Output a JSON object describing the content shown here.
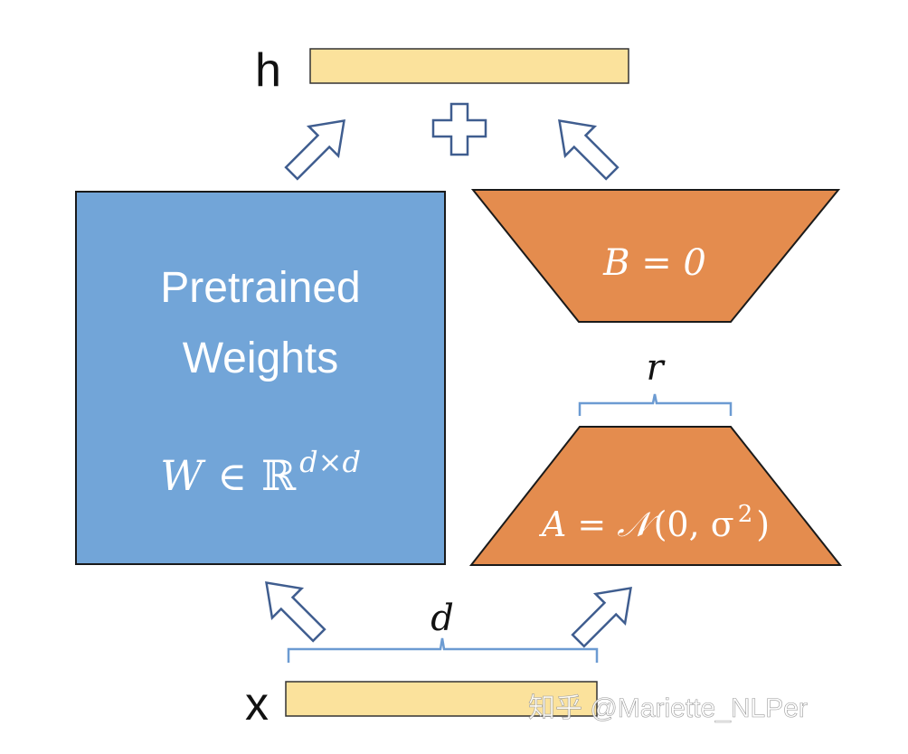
{
  "output_label": "h",
  "input_label": "x",
  "plus_symbol": "plus-sign",
  "pretrained": {
    "line1": "Pretrained",
    "line2": "Weights",
    "formula_W": "W",
    "formula_in": "∈",
    "formula_R": "ℝ",
    "formula_sup": "d×d"
  },
  "matrix_B": {
    "label": "B = 0"
  },
  "matrix_A": {
    "lhs": "A",
    "eq": "=",
    "N": "𝒩",
    "open": "(0, σ",
    "sup": "2",
    "close": ")"
  },
  "rank_label": "r",
  "dim_label": "d",
  "watermark": "知乎 @Mariette_NLPer",
  "colors": {
    "bar_fill": "#FBE29C",
    "pretrained_fill": "#72A5D8",
    "lora_fill": "#E48C4E",
    "arrow_stroke": "#3F5D8F",
    "brace_stroke": "#6C9BD2",
    "ink": "#111111"
  }
}
